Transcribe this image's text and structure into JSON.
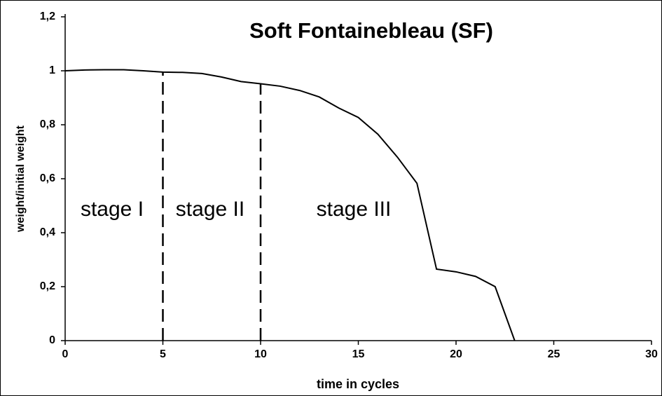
{
  "chart_data": {
    "type": "line",
    "title": "Soft Fontainebleau (SF)",
    "xlabel": "time in cycles",
    "ylabel": "weight/initial weight",
    "x": [
      0,
      1,
      2,
      3,
      4,
      5,
      6,
      7,
      8,
      9,
      10,
      11,
      12,
      13,
      14,
      15,
      16,
      17,
      18,
      19,
      20,
      21,
      22,
      23
    ],
    "series": [
      {
        "color": "#000000",
        "values": [
          1.0,
          1.003,
          1.004,
          1.004,
          1.0,
          0.995,
          0.994,
          0.99,
          0.977,
          0.96,
          0.952,
          0.943,
          0.927,
          0.903,
          0.862,
          0.827,
          0.765,
          0.68,
          0.583,
          0.265,
          0.255,
          0.238,
          0.2,
          0
        ]
      }
    ],
    "xlim": [
      0,
      30
    ],
    "xticks": [
      0,
      5,
      10,
      15,
      20,
      25,
      30
    ],
    "ylim": [
      0,
      1.2
    ],
    "yticks": [
      0,
      {
        "value": 0.2,
        "label": "0,2"
      },
      {
        "value": 0.4,
        "label": "0,4"
      },
      {
        "value": 0.6,
        "label": "0,6"
      },
      {
        "value": 0.8,
        "label": "0,8"
      },
      1,
      {
        "value": 1.2,
        "label": "1,2"
      }
    ],
    "vlines": [
      5,
      10
    ],
    "annotations": [
      "stage I",
      "stage II",
      "stage III"
    ]
  }
}
